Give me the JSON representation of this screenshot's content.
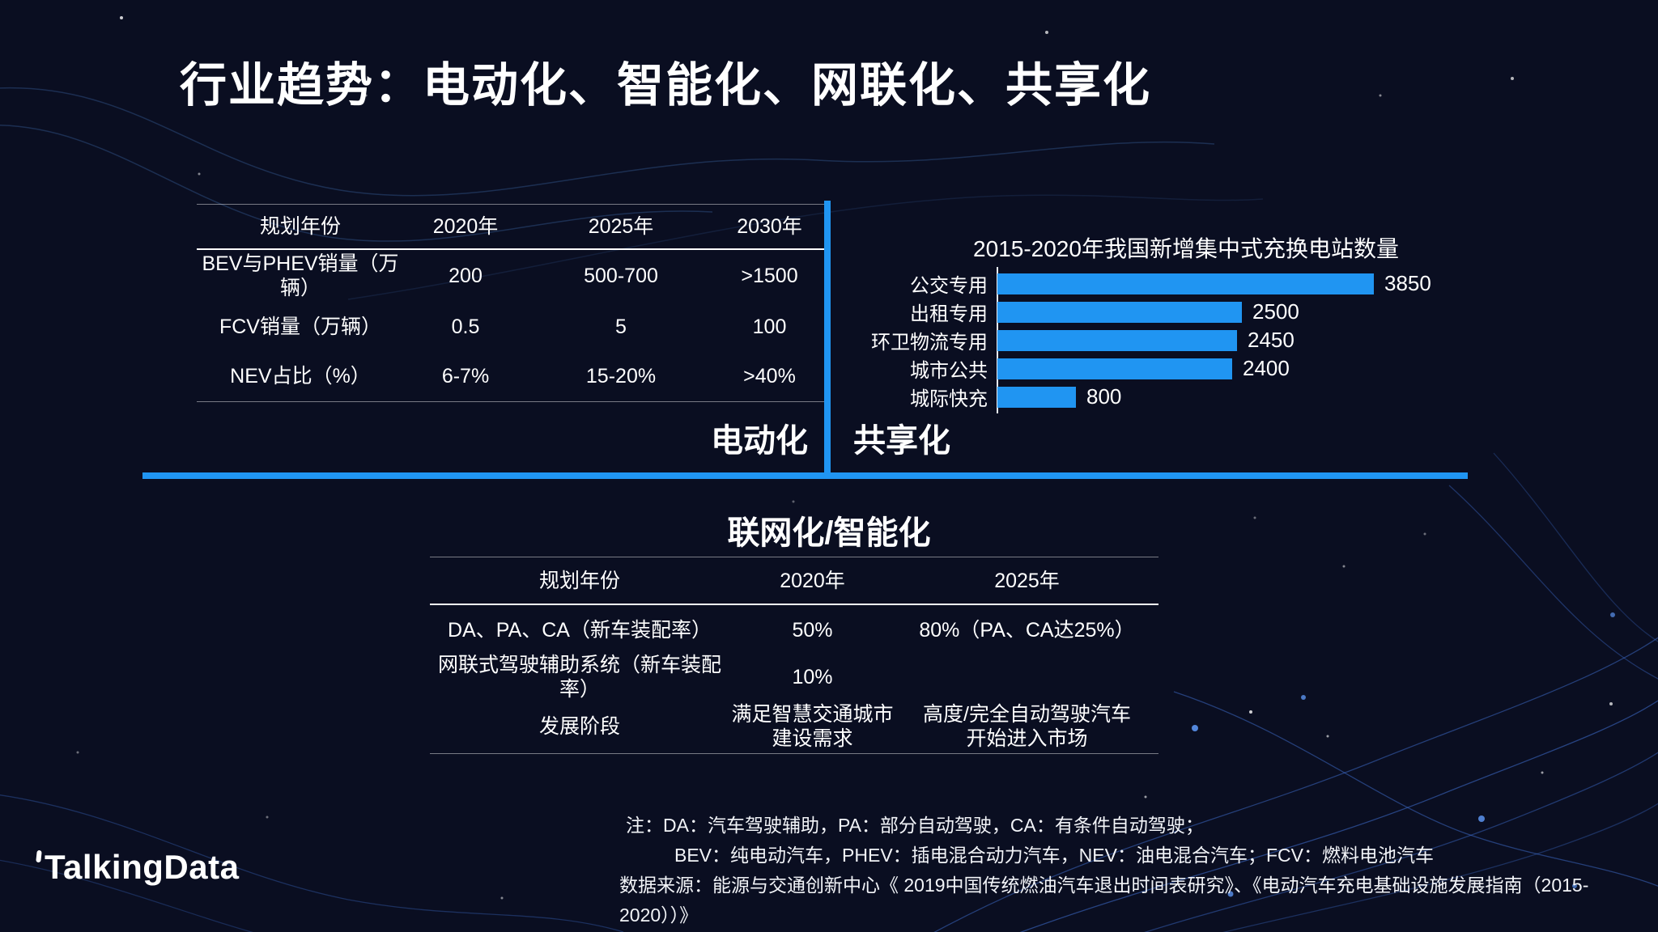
{
  "title": "行业趋势：电动化、智能化、网联化、共享化",
  "colors": {
    "background": "#0a0e21",
    "accent": "#2095f2",
    "axis": "#e8eef5",
    "text": "#ffffff"
  },
  "ev_table": {
    "headers": [
      "规划年份",
      "2020年",
      "2025年",
      "2030年"
    ],
    "rows": [
      {
        "label": "BEV与PHEV销量（万辆）",
        "values": [
          "200",
          "500-700",
          ">1500"
        ]
      },
      {
        "label": "FCV销量（万辆）",
        "values": [
          "0.5",
          "5",
          "100"
        ]
      },
      {
        "label": "NEV占比（%）",
        "values": [
          "6-7%",
          "15-20%",
          ">40%"
        ]
      }
    ]
  },
  "section_labels": {
    "electrification": "电动化",
    "sharing": "共享化",
    "connectivity": "联网化/智能化"
  },
  "chart_data": {
    "type": "bar",
    "orientation": "horizontal",
    "title": "2015-2020年我国新增集中式充换电站数量",
    "categories": [
      "公交专用",
      "出租专用",
      "环卫物流专用",
      "城市公共",
      "城际快充"
    ],
    "values": [
      3850,
      2500,
      2450,
      2400,
      800
    ],
    "xlim": [
      0,
      4300
    ],
    "grid": false,
    "legend": "none",
    "bar_color": "#2095f2",
    "value_labels": [
      "3850",
      "2500",
      "2450",
      "2400",
      "800"
    ]
  },
  "smart_table": {
    "headers": [
      "规划年份",
      "2020年",
      "2025年"
    ],
    "rows": [
      {
        "label": "DA、PA、CA（新车装配率）",
        "values": [
          "50%",
          "80%（PA、CA达25%）"
        ]
      },
      {
        "label": "网联式驾驶辅助系统（新车装配率）",
        "values": [
          "10%",
          ""
        ]
      },
      {
        "label": "发展阶段",
        "values": [
          "满足智慧交通城市\n建设需求",
          "高度/完全自动驾驶汽车\n开始进入市场"
        ]
      }
    ]
  },
  "notes": {
    "line1": "注：DA：汽车驾驶辅助，PA：部分自动驾驶，CA：有条件自动驾驶；",
    "line2": "BEV：纯电动汽车，PHEV：插电混合动力汽车，NEV：油电混合汽车；FCV：燃料电池汽车",
    "line3": "数据来源：能源与交通创新中心《 2019中国传统燃油汽车退出时间表研究》、《电动汽车充电基础设施发展指南（2015-2020））》"
  },
  "logo": {
    "text": "TalkingData"
  }
}
